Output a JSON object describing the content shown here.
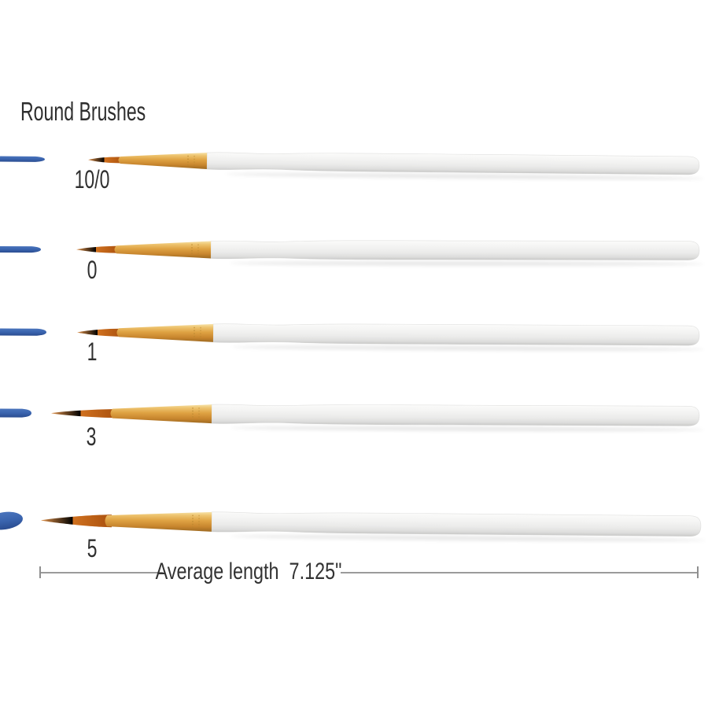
{
  "title": "Round Brushes",
  "brushes": [
    {
      "label": "10/0"
    },
    {
      "label": "0"
    },
    {
      "label": "1"
    },
    {
      "label": "3"
    },
    {
      "label": "5"
    }
  ],
  "dimension": {
    "label": "Average length  7.125\""
  },
  "colors": {
    "paint_stroke_blue": "#3a64ae",
    "ferrule_gold": "#dfa343",
    "bristle_copper": "#c86a1e",
    "handle_white": "#f0f0ef",
    "text_dark": "#2e2e2e",
    "dimension_line_gray": "#9b9b9b"
  }
}
